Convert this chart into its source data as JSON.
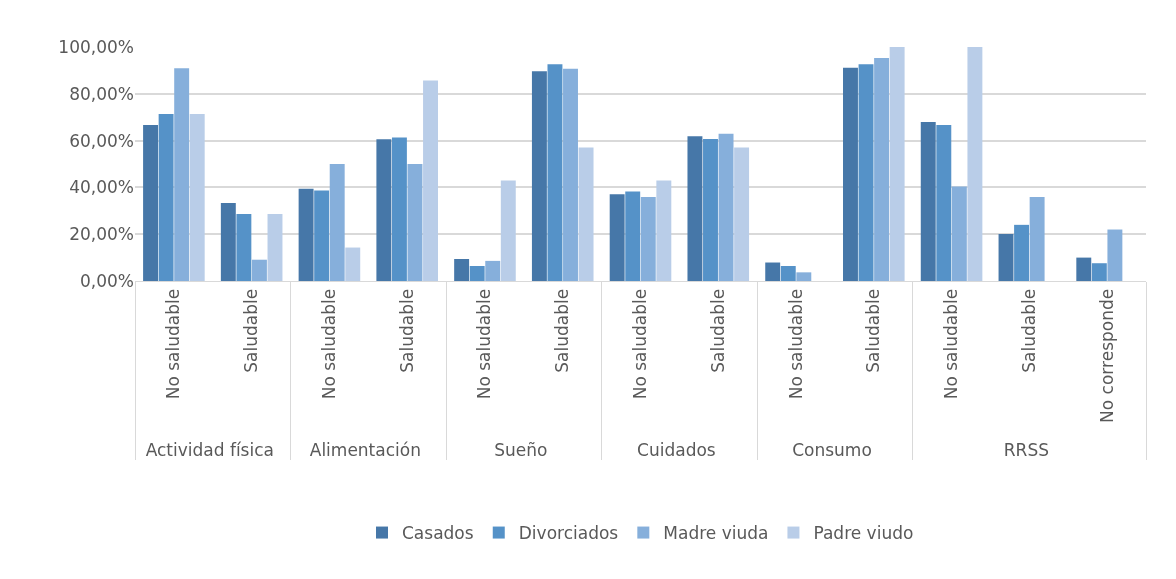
{
  "chart_data": {
    "type": "bar",
    "categories": [
      [
        "Actividad física",
        "No saludable"
      ],
      [
        null,
        "Saludable"
      ],
      [
        "Alimentación",
        "No saludable"
      ],
      [
        null,
        "Saludable"
      ],
      [
        "Sueño",
        "No saludable"
      ],
      [
        null,
        "Saludable"
      ],
      [
        "Cuidados",
        "No saludable"
      ],
      [
        null,
        "Saludable"
      ],
      [
        "Consumo",
        "No saludable"
      ],
      [
        null,
        "Saludable"
      ],
      [
        "RRSS",
        "No saludable"
      ],
      [
        null,
        "Saludable"
      ],
      [
        null,
        "No corresponde"
      ]
    ],
    "series": [
      {
        "name": "Casados",
        "color": "#4677a8",
        "values": [
          66.7,
          33.3,
          39.4,
          60.6,
          9.4,
          89.6,
          37.1,
          61.9,
          7.9,
          91.1,
          68,
          20.1,
          10
        ]
      },
      {
        "name": "Divorciados",
        "color": "#5592c8",
        "values": [
          71.4,
          28.6,
          38.7,
          61.3,
          6.4,
          92.6,
          38.3,
          60.7,
          6.4,
          92.6,
          66.7,
          24,
          7.6
        ]
      },
      {
        "name": "Madre viuda",
        "color": "#86afdb",
        "values": [
          90.9,
          9.1,
          50,
          50,
          8.6,
          90.7,
          35.9,
          62.9,
          3.7,
          95.3,
          40.4,
          35.9,
          22
        ]
      },
      {
        "name": "Padre viudo",
        "color": "#b9cde8",
        "values": [
          71.4,
          28.6,
          14.3,
          85.7,
          42.9,
          57.1,
          42.9,
          57.1,
          0,
          100,
          100,
          0,
          0
        ]
      }
    ],
    "ylim": [
      0,
      100
    ],
    "yticks": [
      {
        "value": 0,
        "label": "0,00%"
      },
      {
        "value": 20,
        "label": "20,00%"
      },
      {
        "value": 40,
        "label": "40,00%"
      },
      {
        "value": 60,
        "label": "60,00%"
      },
      {
        "value": 80,
        "label": "80,00%"
      },
      {
        "value": 100,
        "label": "100,00%"
      }
    ],
    "grid": "y",
    "legend": "bottom"
  }
}
